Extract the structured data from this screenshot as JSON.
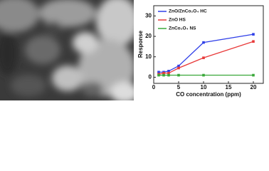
{
  "chart_data": {
    "type": "line",
    "x_label": "CO concentration (ppm)",
    "y_label": "Response",
    "xlim": [
      0,
      22
    ],
    "ylim": [
      -3,
      35
    ],
    "xticks": [
      0,
      5,
      10,
      15,
      20
    ],
    "yticks": [
      0,
      10,
      20,
      30
    ],
    "legend": "upper left",
    "series": [
      {
        "name": "ZnO/ZnCo₂O₄ HC",
        "color": "#3040e8",
        "x": [
          1,
          2,
          3,
          5,
          10,
          20
        ],
        "values": [
          2.5,
          2.5,
          3,
          5.5,
          17,
          21
        ]
      },
      {
        "name": "ZnO HS",
        "color": "#e83a3a",
        "x": [
          1,
          2,
          3,
          5,
          10,
          20
        ],
        "values": [
          1.5,
          2,
          2,
          4.5,
          9.5,
          17.5
        ]
      },
      {
        "name": "ZnCo₂O₄ NS",
        "color": "#3aa83a",
        "x": [
          1,
          2,
          3,
          5,
          10,
          20
        ],
        "values": [
          1,
          1,
          1,
          1,
          1,
          1
        ]
      }
    ]
  }
}
